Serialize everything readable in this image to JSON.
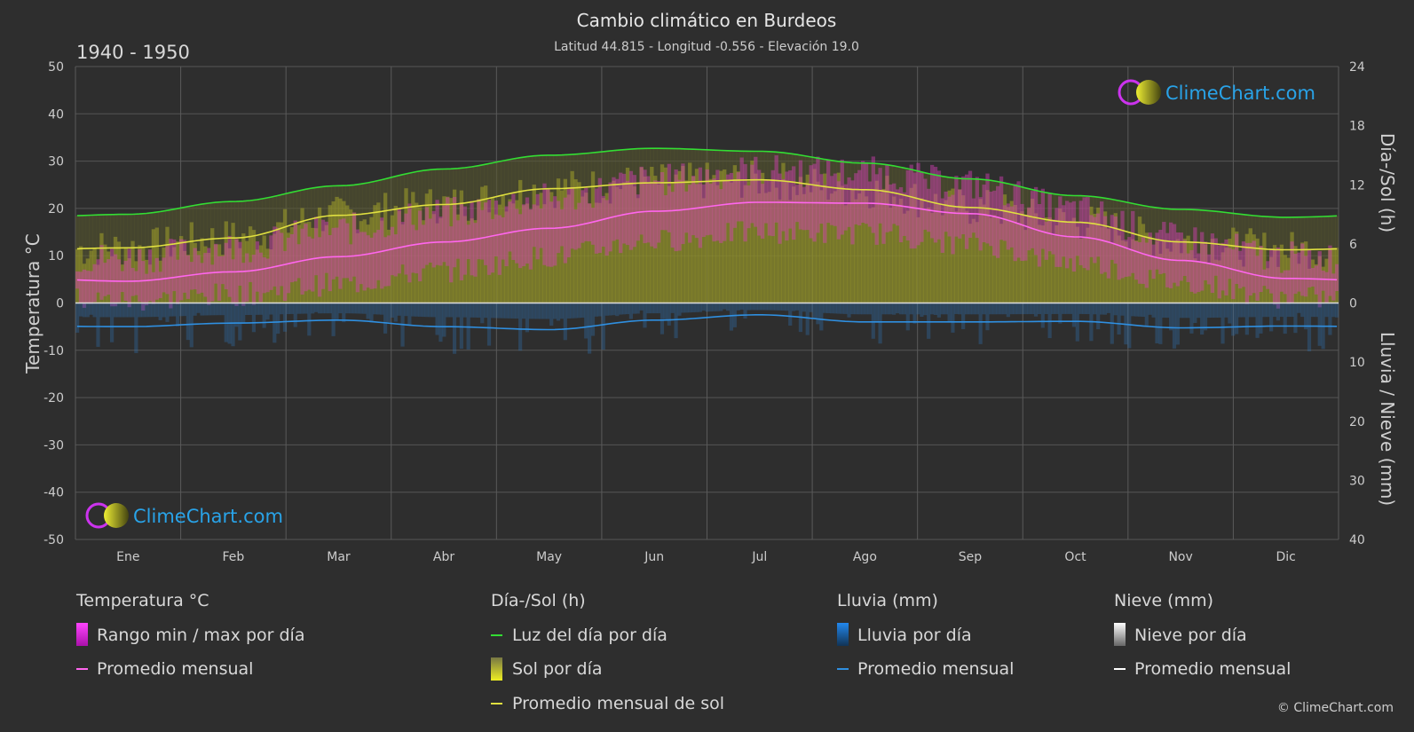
{
  "chart_data": {
    "type": "line",
    "title": "Cambio climático en Burdeos",
    "subtitle": "Latitud 44.815 - Longitud -0.556 - Elevación 19.0",
    "period": "1940 - 1950",
    "categories": [
      "Ene",
      "Feb",
      "Mar",
      "Abr",
      "May",
      "Jun",
      "Jul",
      "Ago",
      "Sep",
      "Oct",
      "Nov",
      "Dic"
    ],
    "y_left": {
      "label": "Temperatura °C",
      "range": [
        -50,
        50
      ],
      "ticks": [
        50,
        40,
        30,
        20,
        10,
        0,
        -10,
        -20,
        -30,
        -40,
        -50
      ]
    },
    "y_right_top": {
      "label": "Día-/Sol (h)",
      "range": [
        0,
        24
      ],
      "ticks": [
        24,
        18,
        12,
        6,
        0
      ]
    },
    "y_right_bottom": {
      "label": "Lluvia / Nieve (mm)",
      "range": [
        0,
        40
      ],
      "ticks": [
        10,
        20,
        30,
        40
      ]
    },
    "grid": true,
    "series": [
      {
        "name": "Luz del día por día",
        "unit": "h",
        "color": "#33dd33",
        "values": [
          9.0,
          10.3,
          11.9,
          13.6,
          15.0,
          15.7,
          15.4,
          14.2,
          12.6,
          10.9,
          9.5,
          8.7
        ]
      },
      {
        "name": "Promedio mensual de sol",
        "unit": "h",
        "color": "#e0e040",
        "values": [
          5.6,
          6.6,
          8.9,
          10.0,
          11.6,
          12.2,
          12.5,
          11.5,
          9.7,
          8.2,
          6.2,
          5.4
        ]
      },
      {
        "name": "Sol por día",
        "unit": "h",
        "color": "#b0b030",
        "values": [
          5.6,
          6.6,
          8.9,
          10.0,
          11.6,
          12.2,
          12.5,
          11.5,
          9.7,
          8.2,
          6.2,
          5.4
        ]
      },
      {
        "name": "Temperatura promedio mensual",
        "unit": "°C",
        "color": "#ff66ee",
        "values": [
          4.6,
          6.6,
          9.8,
          12.9,
          15.8,
          19.4,
          21.3,
          21.1,
          18.9,
          14.0,
          9.0,
          5.2
        ]
      },
      {
        "name": "Rango min / max por día",
        "unit": "°C",
        "color": "#d63fb8",
        "min": [
          0.5,
          1.8,
          4.0,
          6.8,
          9.8,
          13.2,
          15.0,
          14.8,
          12.6,
          8.6,
          4.4,
          1.2
        ],
        "max": [
          9.5,
          11.8,
          15.5,
          19.0,
          22.0,
          26.0,
          28.0,
          27.6,
          25.0,
          19.6,
          13.5,
          9.6
        ]
      },
      {
        "name": "Lluvia promedio mensual",
        "unit": "mm",
        "color": "#2f8fe0",
        "values": [
          4.0,
          3.4,
          2.9,
          4.0,
          4.5,
          2.9,
          2.0,
          3.2,
          3.2,
          3.1,
          4.2,
          3.9
        ]
      }
    ],
    "legend_position": "bottom"
  },
  "legend": {
    "groups": [
      {
        "heading": "Temperatura °C",
        "items": [
          "Rango min / max por día",
          "Promedio mensual"
        ]
      },
      {
        "heading": "Día-/Sol (h)",
        "items": [
          "Luz del día por día",
          "Sol por día",
          "Promedio mensual de sol"
        ]
      },
      {
        "heading": "Lluvia (mm)",
        "items": [
          "Lluvia por día",
          "Promedio mensual"
        ]
      },
      {
        "heading": "Nieve (mm)",
        "items": [
          "Nieve por día",
          "Promedio mensual"
        ]
      }
    ]
  },
  "brand": "ClimeChart.com",
  "copyright": "© ClimeChart.com",
  "colors": {
    "background": "#2e2e2e",
    "grid": "#555555",
    "daylight": "#33dd33",
    "sun_line": "#e0e040",
    "sun_fill": "#9a9a2a",
    "temp_line": "#ff66ee",
    "temp_range": "#d63fb8",
    "rain": "#2f8fe0",
    "snow": "#ffffff",
    "brand": "#29a3e8"
  }
}
